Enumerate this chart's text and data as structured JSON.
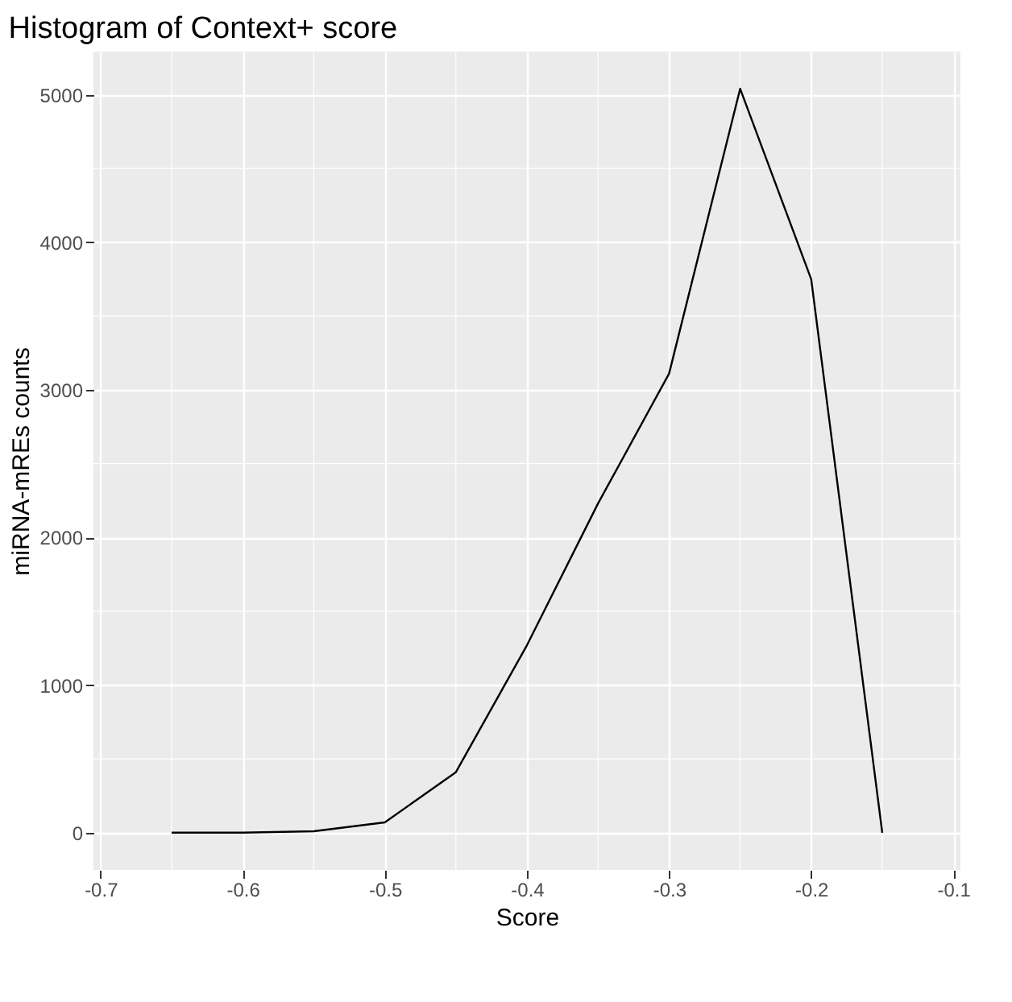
{
  "chart_data": {
    "type": "line",
    "title": "Histogram of Context+ score",
    "xlabel": "Score",
    "ylabel": "miRNA-mREs counts",
    "x": [
      -0.65,
      -0.6,
      -0.55,
      -0.5,
      -0.45,
      -0.4,
      -0.35,
      -0.3,
      -0.25,
      -0.2,
      -0.15
    ],
    "series": [
      {
        "color": "#000000",
        "values": [
          0,
          0,
          10,
          70,
          410,
          1270,
          2230,
          3110,
          5040,
          3750,
          0
        ]
      }
    ],
    "xlim": [
      -0.705,
      -0.095
    ],
    "xticks": [
      -0.7,
      -0.6,
      -0.5,
      -0.4,
      -0.3,
      -0.2,
      -0.1
    ],
    "ylim": [
      -252,
      5292
    ],
    "yticks": [
      0,
      1000,
      2000,
      3000,
      4000,
      5000
    ],
    "grid": true,
    "marker": "none",
    "line_style": "solid"
  }
}
